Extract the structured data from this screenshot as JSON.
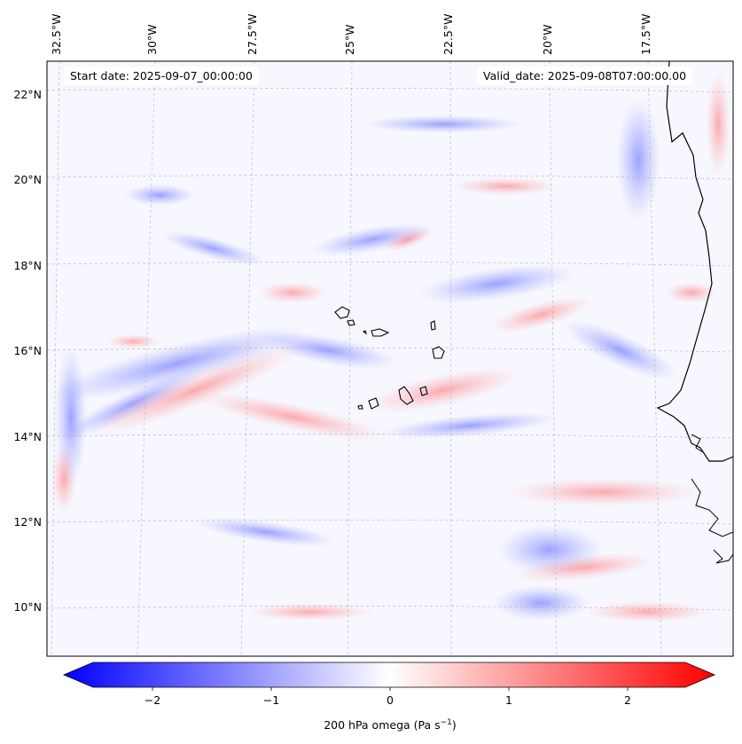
{
  "header": {
    "start_date": "Start date: 2025-09-07_00:00:00",
    "valid_date": "Valid_date: 2025-09-08T07:00:00.00"
  },
  "map": {
    "region": "Cape Verde / West Africa coast",
    "projection_grid": "dashed graticule",
    "lon_labels": [
      "32.5°W",
      "30°W",
      "27.5°W",
      "25°W",
      "22.5°W",
      "20°W",
      "17.5°W"
    ],
    "lat_labels": [
      "22°N",
      "20°N",
      "18°N",
      "16°N",
      "14°N",
      "12°N",
      "10°N"
    ],
    "field": "200 hPa omega",
    "colormap": "bwr",
    "colors": {
      "negative": "#0000ff",
      "zero": "#ffffff",
      "positive": "#ff0000",
      "coast": "#000000",
      "grid": "#b0b0b0"
    }
  },
  "colorbar": {
    "ticks": [
      "−2",
      "−1",
      "0",
      "1",
      "2"
    ],
    "tick_values": [
      -2,
      -1,
      0,
      1,
      2
    ],
    "range": [
      -2.75,
      2.75
    ],
    "extend": "both",
    "label": "200 hPa omega (Pa s",
    "label_exp": "−1",
    "label_close": ")"
  }
}
